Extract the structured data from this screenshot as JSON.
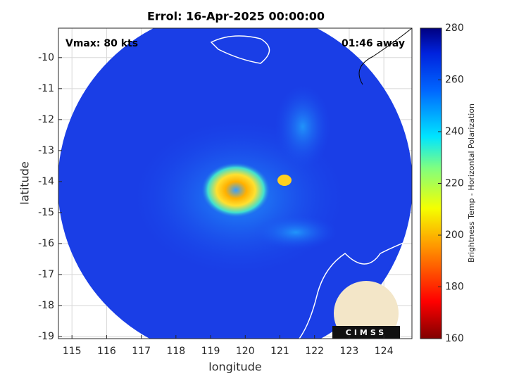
{
  "chart_data": {
    "type": "map",
    "title": "Errol: 16-Apr-2025 00:00:00",
    "xlabel": "longitude",
    "ylabel": "latitude",
    "annotations": [
      "Vmax: 80 kts",
      "01:46 away"
    ],
    "logo_text": "CIMSS",
    "xlim": [
      114.61,
      124.81
    ],
    "xticks": [
      115,
      116,
      117,
      118,
      119,
      120,
      121,
      122,
      123,
      124
    ],
    "ylim": [
      -19.07,
      -9.05
    ],
    "yticks": [
      -10,
      -11,
      -12,
      -13,
      -14,
      -15,
      -16,
      -17,
      -18,
      -19
    ],
    "grid": true,
    "colorbar": {
      "label": "Brightness Temp - Horizontal Polarization",
      "lim": [
        160,
        280
      ],
      "ticks": [
        160,
        180,
        200,
        220,
        240,
        260,
        280
      ]
    }
  }
}
